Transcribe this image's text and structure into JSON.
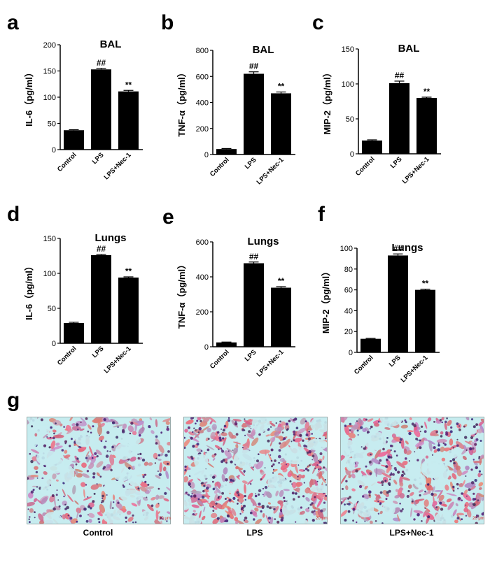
{
  "panel_letters": [
    "a",
    "b",
    "c",
    "d",
    "e",
    "f",
    "g"
  ],
  "colors": {
    "bar": "#000000",
    "axis": "#000000",
    "tissue_bg": "#c6ecef"
  },
  "chart_data": [
    {
      "id": "a",
      "type": "bar",
      "title": "BAL",
      "ylabel": "IL-6（pg/ml）",
      "categories": [
        "Control",
        "LPS",
        "LPS+Nec-1"
      ],
      "values": [
        37,
        153,
        111
      ],
      "errors": [
        1,
        2,
        2
      ],
      "annotations": [
        "",
        "##",
        "**"
      ],
      "ylim": [
        0,
        200
      ],
      "yticks": [
        0,
        50,
        100,
        150,
        200
      ]
    },
    {
      "id": "b",
      "type": "bar",
      "title": "BAL",
      "ylabel": "TNF-α（pg/ml）",
      "categories": [
        "Control",
        "LPS",
        "LPS+Nec-1"
      ],
      "values": [
        42,
        620,
        470
      ],
      "errors": [
        4,
        15,
        10
      ],
      "annotations": [
        "",
        "##",
        "**"
      ],
      "ylim": [
        0,
        800
      ],
      "yticks": [
        0,
        200,
        400,
        600,
        800
      ]
    },
    {
      "id": "c",
      "type": "bar",
      "title": "BAL",
      "ylabel": "MIP-2（pg/ml）",
      "categories": [
        "Control",
        "LPS",
        "LPS+Nec-1"
      ],
      "values": [
        19,
        101,
        80
      ],
      "errors": [
        1,
        3,
        1
      ],
      "annotations": [
        "",
        "##",
        "**"
      ],
      "ylim": [
        0,
        150
      ],
      "yticks": [
        0,
        50,
        100,
        150
      ]
    },
    {
      "id": "d",
      "type": "bar",
      "title": "Lungs",
      "ylabel": "IL-6（pg/ml）",
      "categories": [
        "Control",
        "LPS",
        "LPS+Nec-1"
      ],
      "values": [
        29,
        126,
        94
      ],
      "errors": [
        1,
        1,
        1
      ],
      "annotations": [
        "",
        "##",
        "**"
      ],
      "ylim": [
        0,
        150
      ],
      "yticks": [
        0,
        50,
        100,
        150
      ]
    },
    {
      "id": "e",
      "type": "bar",
      "title": "Lungs",
      "ylabel": "TNF-α（pg/ml）",
      "categories": [
        "Control",
        "LPS",
        "LPS+Nec-1"
      ],
      "values": [
        25,
        478,
        338
      ],
      "errors": [
        2,
        7,
        6
      ],
      "annotations": [
        "",
        "##",
        "**"
      ],
      "ylim": [
        0,
        600
      ],
      "yticks": [
        0,
        200,
        400,
        600
      ]
    },
    {
      "id": "f",
      "type": "bar",
      "title": "Lungs",
      "ylabel": "MIP-2（pg/ml）",
      "categories": [
        "Control",
        "LPS",
        "LPS+Nec-1"
      ],
      "values": [
        13,
        93,
        60
      ],
      "errors": [
        0.5,
        1.5,
        0.7
      ],
      "annotations": [
        "",
        "##",
        "**"
      ],
      "ylim": [
        0,
        100
      ],
      "yticks": [
        0,
        20,
        40,
        60,
        80,
        100
      ]
    }
  ],
  "micrographs": {
    "captions": [
      "Control",
      "LPS",
      "LPS+Nec-1"
    ],
    "scale_bar_text": "20 μm"
  }
}
